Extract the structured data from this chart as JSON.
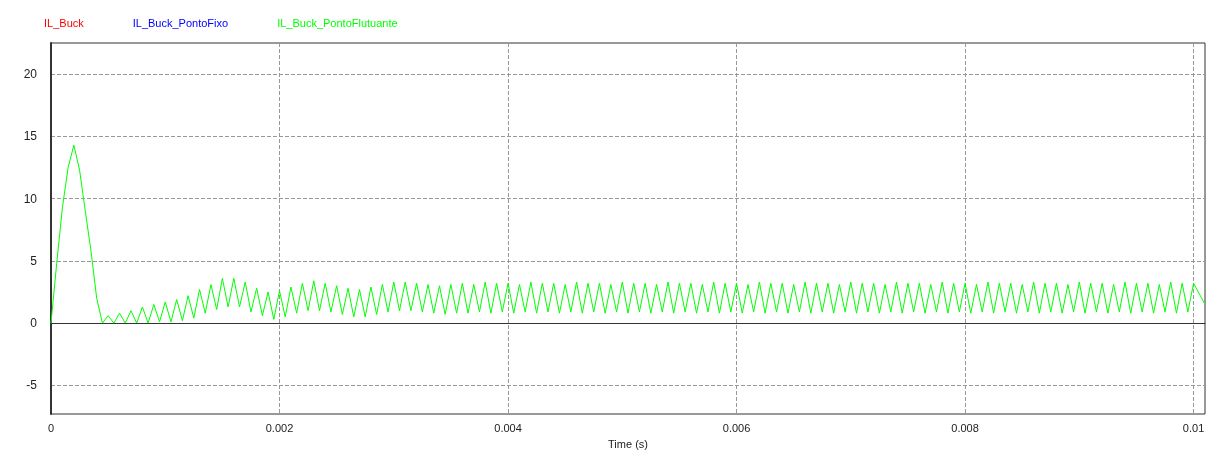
{
  "chart_data": {
    "type": "line",
    "xlabel": "Time (s)",
    "xlim": [
      0,
      0.0101
    ],
    "ylim": [
      -7.3,
      22.5
    ],
    "xticks": [
      0,
      0.002,
      0.004,
      0.006,
      0.008,
      0.01
    ],
    "yticks": [
      -5,
      0,
      5,
      10,
      15,
      20
    ],
    "grid": true,
    "legend": "top left",
    "marker": "none",
    "line_style": "solid",
    "x": [
      0,
      5e-05,
      0.0001,
      0.00015,
      0.0002,
      0.00025,
      0.0003,
      0.00035,
      0.0004,
      0.00045,
      0.0005,
      0.00055,
      0.0006,
      0.00065,
      0.0007,
      0.00075,
      0.0008,
      0.00085,
      0.0009,
      0.00095,
      0.001,
      0.00105,
      0.0011,
      0.00115,
      0.0012,
      0.00125,
      0.0013,
      0.00135,
      0.0014,
      0.00145,
      0.0015,
      0.00155,
      0.0016,
      0.00165,
      0.0017,
      0.00175,
      0.0018,
      0.00185,
      0.0019,
      0.00195,
      0.002,
      0.00205,
      0.0021,
      0.00215,
      0.0022,
      0.00225,
      0.0023,
      0.00235,
      0.0024,
      0.00245,
      0.0025,
      0.00255,
      0.0026,
      0.00265,
      0.0027,
      0.00275,
      0.0028,
      0.00285,
      0.0029,
      0.00295,
      0.003,
      0.00305,
      0.0031,
      0.00315,
      0.0032,
      0.00325,
      0.0033,
      0.00335,
      0.0034,
      0.00345,
      0.0035,
      0.00355,
      0.0036,
      0.00365,
      0.0037,
      0.00375,
      0.0038,
      0.00385,
      0.0039,
      0.00395,
      0.004,
      0.00405,
      0.0041,
      0.00415,
      0.0042,
      0.00425,
      0.0043,
      0.00435,
      0.0044,
      0.00445,
      0.0045,
      0.00455,
      0.0046,
      0.00465,
      0.0047,
      0.00475,
      0.0048,
      0.00485,
      0.0049,
      0.00495,
      0.005,
      0.00505,
      0.0051,
      0.00515,
      0.0052,
      0.00525,
      0.0053,
      0.00535,
      0.0054,
      0.00545,
      0.0055,
      0.00555,
      0.0056,
      0.00565,
      0.0057,
      0.00575,
      0.0058,
      0.00585,
      0.0059,
      0.00595,
      0.006,
      0.00605,
      0.0061,
      0.00615,
      0.0062,
      0.00625,
      0.0063,
      0.00635,
      0.0064,
      0.00645,
      0.0065,
      0.00655,
      0.0066,
      0.00665,
      0.0067,
      0.00675,
      0.0068,
      0.00685,
      0.0069,
      0.00695,
      0.007,
      0.00705,
      0.0071,
      0.00715,
      0.0072,
      0.00725,
      0.0073,
      0.00735,
      0.0074,
      0.00745,
      0.0075,
      0.00755,
      0.0076,
      0.00765,
      0.0077,
      0.00775,
      0.0078,
      0.00785,
      0.0079,
      0.00795,
      0.008,
      0.00805,
      0.0081,
      0.00815,
      0.0082,
      0.00825,
      0.0083,
      0.00835,
      0.0084,
      0.00845,
      0.0085,
      0.00855,
      0.0086,
      0.00865,
      0.0087,
      0.00875,
      0.0088,
      0.00885,
      0.0089,
      0.00895,
      0.009,
      0.00905,
      0.0091,
      0.00915,
      0.0092,
      0.00925,
      0.0093,
      0.00935,
      0.0094,
      0.00945,
      0.0095,
      0.00955,
      0.0096,
      0.00965,
      0.0097,
      0.00975,
      0.0098,
      0.00985,
      0.0099,
      0.00995,
      0.01,
      0.0101
    ],
    "series": [
      {
        "name": "IL_Buck",
        "color": "#ff0000",
        "values": [
          null,
          null,
          null,
          null,
          null,
          null,
          null,
          null,
          null,
          null,
          null,
          null,
          null,
          null,
          null,
          null,
          null,
          null,
          null,
          null,
          null,
          null,
          null,
          null,
          null,
          null,
          null,
          null,
          null,
          null,
          null,
          null,
          null,
          null,
          null,
          null,
          null,
          null,
          null,
          null,
          null,
          null,
          null,
          null,
          null,
          null,
          null,
          null,
          null,
          null,
          null,
          null,
          null,
          null,
          null,
          null,
          null,
          null,
          null,
          null,
          null,
          null,
          null,
          null,
          null,
          null,
          null,
          null,
          null,
          null,
          null,
          null,
          null,
          null,
          null,
          null,
          null,
          null,
          null,
          null,
          null,
          null,
          null,
          null,
          null,
          null,
          null,
          null,
          null,
          null,
          null,
          null,
          null,
          null,
          null,
          null,
          null,
          null,
          null,
          null,
          null,
          null,
          null,
          null,
          null,
          null,
          null,
          null,
          null,
          null,
          null,
          null,
          null,
          null,
          null,
          null,
          null,
          null,
          null,
          null,
          null,
          null,
          null,
          null,
          null,
          null,
          null,
          null,
          null,
          null,
          null,
          null,
          null,
          null,
          null,
          null,
          null,
          null,
          null,
          null,
          null,
          null,
          null,
          null,
          null,
          null,
          null,
          null,
          null,
          null,
          null,
          null,
          null,
          null,
          null,
          null,
          null,
          null,
          null,
          null,
          null,
          null,
          null,
          null,
          null,
          null,
          null,
          null,
          null,
          null,
          null,
          null,
          null,
          null,
          null,
          null,
          null,
          null,
          null,
          null,
          null,
          null,
          null,
          null,
          null,
          null,
          null,
          null,
          null,
          null,
          null,
          null,
          null,
          null,
          null,
          null,
          null,
          null,
          null,
          null,
          null,
          null
        ]
      },
      {
        "name": "IL_Buck_PontoFixo",
        "color": "#0000ff",
        "values": [
          null,
          null,
          null,
          null,
          null,
          null,
          null,
          null,
          null,
          null,
          null,
          null,
          null,
          null,
          null,
          null,
          null,
          null,
          null,
          null,
          null,
          null,
          null,
          null,
          null,
          null,
          null,
          null,
          null,
          null,
          null,
          null,
          null,
          null,
          null,
          null,
          null,
          null,
          null,
          null,
          null,
          null,
          null,
          null,
          null,
          null,
          null,
          null,
          null,
          null,
          null,
          null,
          null,
          null,
          null,
          null,
          null,
          null,
          null,
          null,
          null,
          null,
          null,
          null,
          null,
          null,
          null,
          null,
          null,
          null,
          null,
          null,
          null,
          null,
          null,
          null,
          null,
          null,
          null,
          null,
          null,
          null,
          null,
          null,
          null,
          null,
          null,
          null,
          null,
          null,
          null,
          null,
          null,
          null,
          null,
          null,
          null,
          null,
          null,
          null,
          null,
          null,
          null,
          null,
          null,
          null,
          null,
          null,
          null,
          null,
          null,
          null,
          null,
          null,
          null,
          null,
          null,
          null,
          null,
          null,
          null,
          null,
          null,
          null,
          null,
          null,
          null,
          null,
          null,
          null,
          null,
          null,
          null,
          null,
          null,
          null,
          null,
          null,
          null,
          null,
          null,
          null,
          null,
          null,
          null,
          null,
          null,
          null,
          null,
          null,
          null,
          null,
          null,
          null,
          null,
          null,
          null,
          null,
          null,
          null,
          null,
          null,
          null,
          null,
          null,
          null,
          null,
          null,
          null,
          null,
          null,
          null,
          null,
          null,
          null,
          null,
          null,
          null,
          null,
          null,
          null,
          null,
          null,
          null,
          null,
          null,
          null,
          null,
          null,
          null,
          null,
          null,
          null,
          null,
          null,
          null,
          null,
          null,
          null,
          null,
          null,
          null
        ]
      },
      {
        "name": "IL_Buck_PontoFlutuante",
        "color": "#00ff00",
        "values": [
          0,
          4.8,
          9.3,
          12.5,
          14.3,
          12.3,
          9,
          5.8,
          2,
          0,
          0.6,
          0,
          0.8,
          0,
          1,
          0,
          1.3,
          0,
          1.5,
          0.1,
          1.7,
          0.1,
          1.9,
          0.2,
          2.2,
          0.4,
          2.7,
          0.8,
          3.1,
          1.1,
          3.6,
          1.3,
          3.6,
          1.3,
          3.3,
          0.9,
          2.8,
          0.6,
          2.5,
          0.3,
          2.6,
          0.5,
          2.9,
          0.8,
          3.2,
          1,
          3.4,
          1,
          3.2,
          0.9,
          3,
          0.7,
          2.8,
          0.5,
          2.7,
          0.5,
          2.9,
          0.7,
          3.1,
          0.9,
          3.3,
          1,
          3.3,
          1,
          3.2,
          0.9,
          3.1,
          0.8,
          3,
          0.7,
          3.1,
          0.8,
          3.2,
          0.8,
          3.1,
          0.9,
          3.3,
          0.8,
          3.2,
          0.9,
          3.2,
          0.8,
          3.1,
          0.9,
          3.3,
          0.8,
          3.2,
          0.9,
          3.2,
          0.8,
          3.1,
          0.9,
          3.3,
          0.8,
          3.2,
          0.9,
          3.2,
          0.8,
          3.1,
          0.9,
          3.3,
          0.8,
          3.2,
          0.9,
          3.2,
          0.8,
          3.1,
          0.9,
          3.3,
          0.8,
          3.2,
          0.9,
          3.2,
          0.8,
          3.1,
          0.9,
          3.3,
          0.8,
          3.2,
          0.9,
          3.2,
          0.8,
          3.1,
          0.9,
          3.3,
          0.8,
          3.2,
          0.9,
          3.2,
          0.8,
          3.1,
          0.9,
          3.3,
          0.8,
          3.2,
          0.9,
          3.2,
          0.8,
          3.1,
          0.9,
          3.3,
          0.8,
          3.2,
          0.9,
          3.2,
          0.8,
          3.1,
          0.9,
          3.3,
          0.8,
          3.2,
          0.9,
          3.2,
          0.8,
          3.1,
          0.9,
          3.3,
          0.8,
          3.2,
          0.9,
          3.2,
          0.8,
          3.1,
          0.9,
          3.3,
          0.8,
          3.2,
          0.9,
          3.2,
          0.8,
          3.1,
          0.9,
          3.3,
          0.8,
          3.2,
          0.9,
          3.2,
          0.8,
          3.1,
          0.9,
          3.3,
          0.8,
          3.2,
          0.9,
          3.2,
          0.8,
          3.1,
          0.9,
          3.3,
          0.8,
          3.2,
          0.9,
          3.2,
          0.8,
          3.1,
          0.9,
          3.3,
          0.8,
          3.2,
          0.9,
          3.2,
          1.5
        ]
      }
    ]
  }
}
